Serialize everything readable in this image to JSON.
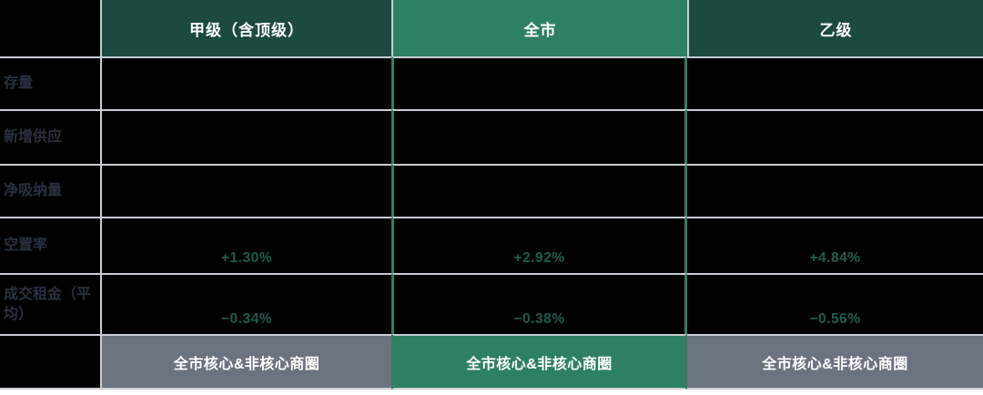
{
  "table": {
    "header": {
      "corner": "",
      "columns": [
        {
          "label": "甲级（含顶级）",
          "highlight": false
        },
        {
          "label": "全市",
          "highlight": true
        },
        {
          "label": "乙级",
          "highlight": false
        }
      ]
    },
    "rows": [
      {
        "label": "存量",
        "values": [
          "",
          "",
          ""
        ]
      },
      {
        "label": "新增供应",
        "values": [
          "",
          "",
          ""
        ]
      },
      {
        "label": "净吸纳量",
        "values": [
          "",
          "",
          ""
        ]
      },
      {
        "label": "空置率",
        "values": [
          "+1.30%",
          "+2.92%",
          "+4.84%"
        ]
      },
      {
        "label": "成交租金（平均）",
        "values": [
          "−0.34%",
          "−0.38%",
          "−0.56%"
        ]
      }
    ],
    "footer": {
      "cells": [
        "全市核心&非核心商圈",
        "全市核心&非核心商圈",
        "全市核心&非核心商圈"
      ]
    }
  },
  "colors": {
    "header_dark_green": "#1c4a41",
    "highlight_green": "#2e8062",
    "value_green": "#1e5d4c",
    "footer_gray": "#6b7280",
    "cell_black": "#000000",
    "divider_gray": "#c9cdd3",
    "row_label_text": "#2a3140",
    "header_text": "#ffffff"
  },
  "chart_data": {
    "type": "table",
    "columns": [
      "",
      "甲级（含顶级）",
      "全市",
      "乙级"
    ],
    "rows": [
      [
        "存量",
        "",
        "",
        ""
      ],
      [
        "新增供应",
        "",
        "",
        ""
      ],
      [
        "净吸纳量",
        "",
        "",
        ""
      ],
      [
        "空置率",
        "+1.30%",
        "+2.92%",
        "+4.84%"
      ],
      [
        "成交租金（平均）",
        "−0.34%",
        "−0.38%",
        "−0.56%"
      ],
      [
        "",
        "全市核心&非核心商圈",
        "全市核心&非核心商圈",
        "全市核心&非核心商圈"
      ]
    ],
    "highlighted_column": "全市"
  }
}
